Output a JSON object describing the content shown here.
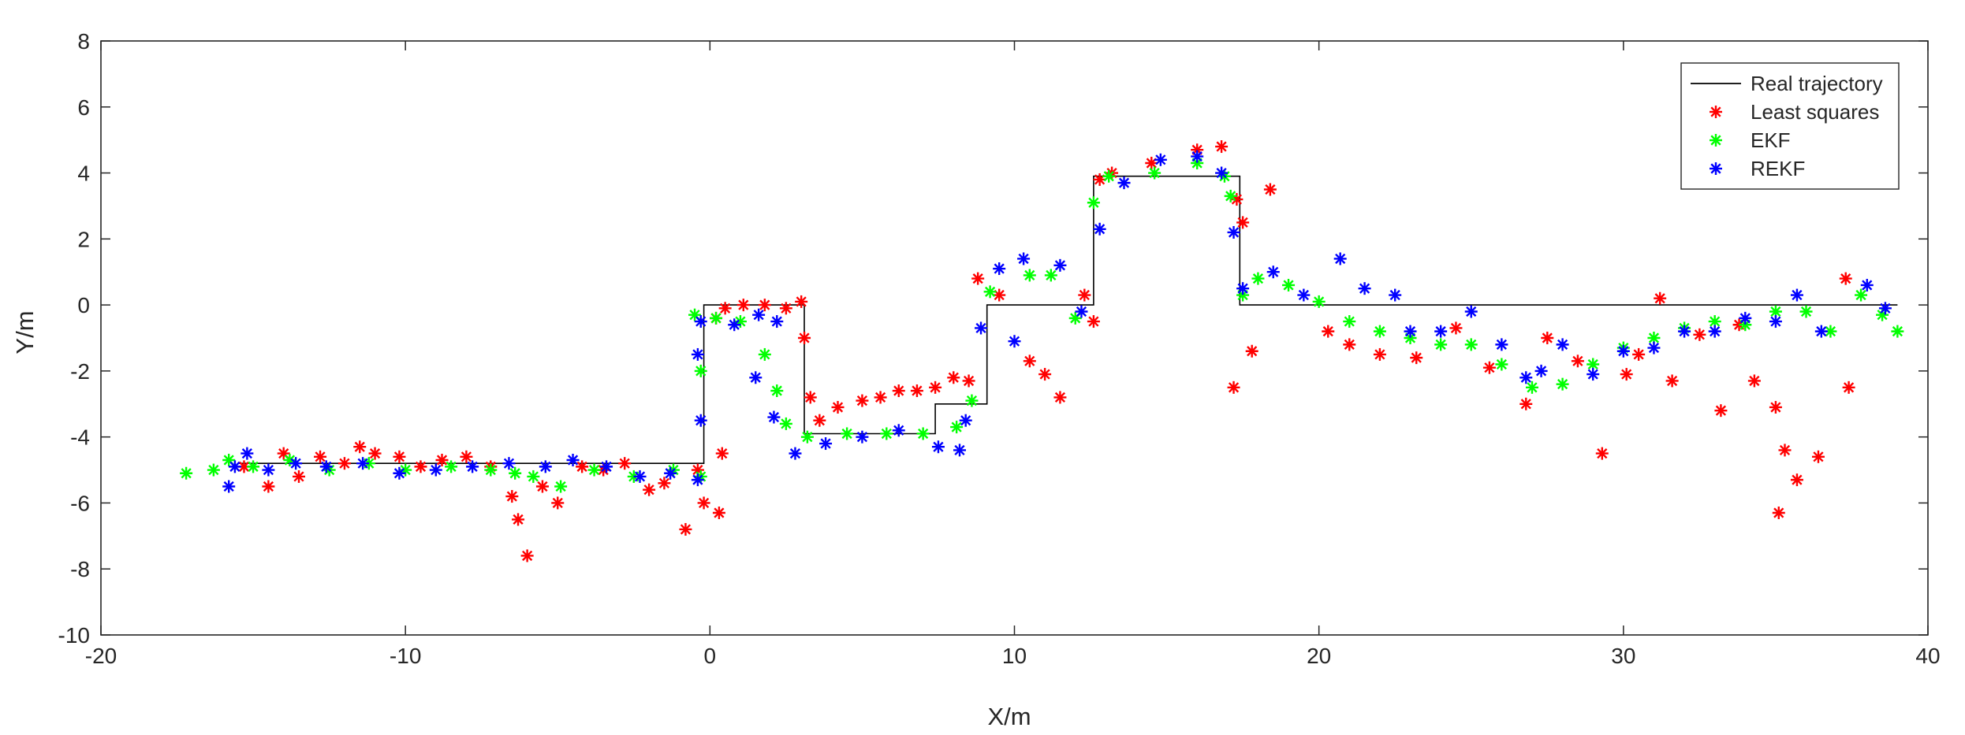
{
  "chart_data": {
    "type": "scatter",
    "xlabel": "X/m",
    "ylabel": "Y/m",
    "xlim": [
      -20,
      40
    ],
    "ylim": [
      -10,
      8
    ],
    "x_ticks": [
      -20,
      -10,
      0,
      10,
      20,
      30,
      40
    ],
    "y_ticks": [
      -10,
      -8,
      -6,
      -4,
      -2,
      0,
      2,
      4,
      6,
      8
    ],
    "grid": false,
    "legend_position": "top-right",
    "series": [
      {
        "name": "Real trajectory",
        "style": "line",
        "color": "#000000",
        "points": [
          [
            -15.5,
            -4.8
          ],
          [
            -0.2,
            -4.8
          ],
          [
            -0.2,
            0.0
          ],
          [
            3.1,
            0.0
          ],
          [
            3.1,
            -3.9
          ],
          [
            7.4,
            -3.9
          ],
          [
            7.4,
            -3.0
          ],
          [
            9.1,
            -3.0
          ],
          [
            9.1,
            0.0
          ],
          [
            12.6,
            0.0
          ],
          [
            12.6,
            3.9
          ],
          [
            17.4,
            3.9
          ],
          [
            17.4,
            0.0
          ],
          [
            39.0,
            0.0
          ]
        ]
      },
      {
        "name": "Least squares",
        "style": "marker",
        "color": "#ff0000",
        "points": [
          [
            -15.3,
            -4.9
          ],
          [
            -14.5,
            -5.5
          ],
          [
            -14,
            -4.5
          ],
          [
            -13.5,
            -5.2
          ],
          [
            -12.8,
            -4.6
          ],
          [
            -12,
            -4.8
          ],
          [
            -11.5,
            -4.3
          ],
          [
            -11,
            -4.5
          ],
          [
            -10.2,
            -4.6
          ],
          [
            -9.5,
            -4.9
          ],
          [
            -8.8,
            -4.7
          ],
          [
            -8,
            -4.6
          ],
          [
            -7.2,
            -4.9
          ],
          [
            -6.5,
            -5.8
          ],
          [
            -6.3,
            -6.5
          ],
          [
            -6.0,
            -7.6
          ],
          [
            -5.5,
            -5.5
          ],
          [
            -5,
            -6.0
          ],
          [
            -4.2,
            -4.9
          ],
          [
            -3.5,
            -5.0
          ],
          [
            -2.8,
            -4.8
          ],
          [
            -2,
            -5.6
          ],
          [
            -1.5,
            -5.4
          ],
          [
            -0.8,
            -6.8
          ],
          [
            -0.4,
            -5.0
          ],
          [
            -0.2,
            -6.0
          ],
          [
            0.3,
            -6.3
          ],
          [
            0.4,
            -4.5
          ],
          [
            0.2,
            -0.4
          ],
          [
            0.5,
            -0.1
          ],
          [
            1.1,
            0.0
          ],
          [
            1.8,
            0.0
          ],
          [
            2.5,
            -0.1
          ],
          [
            3.0,
            0.1
          ],
          [
            3.1,
            -1.0
          ],
          [
            3.3,
            -2.8
          ],
          [
            3.6,
            -3.5
          ],
          [
            4.2,
            -3.1
          ],
          [
            5.0,
            -2.9
          ],
          [
            5.6,
            -2.8
          ],
          [
            6.2,
            -2.6
          ],
          [
            6.8,
            -2.6
          ],
          [
            7.4,
            -2.5
          ],
          [
            8.0,
            -2.2
          ],
          [
            8.5,
            -2.3
          ],
          [
            8.8,
            0.8
          ],
          [
            9.5,
            0.3
          ],
          [
            10.5,
            -1.7
          ],
          [
            11,
            -2.1
          ],
          [
            11.5,
            -2.8
          ],
          [
            12.3,
            0.3
          ],
          [
            12.6,
            -0.5
          ],
          [
            12.8,
            3.8
          ],
          [
            13.2,
            4.0
          ],
          [
            14.5,
            4.3
          ],
          [
            16,
            4.7
          ],
          [
            16.8,
            4.8
          ],
          [
            17.3,
            3.2
          ],
          [
            17.5,
            2.5
          ],
          [
            17.2,
            -2.5
          ],
          [
            17.8,
            -1.4
          ],
          [
            18.4,
            3.5
          ],
          [
            20.3,
            -0.8
          ],
          [
            21,
            -1.2
          ],
          [
            22,
            -1.5
          ],
          [
            23.2,
            -1.6
          ],
          [
            24.5,
            -0.7
          ],
          [
            25.6,
            -1.9
          ],
          [
            26.8,
            -3.0
          ],
          [
            27.5,
            -1.0
          ],
          [
            28.5,
            -1.7
          ],
          [
            29.3,
            -4.5
          ],
          [
            30.1,
            -2.1
          ],
          [
            30.5,
            -1.5
          ],
          [
            31.2,
            0.2
          ],
          [
            31.6,
            -2.3
          ],
          [
            32.5,
            -0.9
          ],
          [
            33.2,
            -3.2
          ],
          [
            33.8,
            -0.6
          ],
          [
            34.3,
            -2.3
          ],
          [
            35.0,
            -3.1
          ],
          [
            35.1,
            -6.3
          ],
          [
            35.3,
            -4.4
          ],
          [
            35.7,
            -5.3
          ],
          [
            36.4,
            -4.6
          ],
          [
            37.4,
            -2.5
          ],
          [
            37.3,
            0.8
          ]
        ]
      },
      {
        "name": "EKF",
        "style": "marker",
        "color": "#00ff00",
        "points": [
          [
            -17.2,
            -5.1
          ],
          [
            -16.3,
            -5.0
          ],
          [
            -15.8,
            -4.7
          ],
          [
            -15.0,
            -4.9
          ],
          [
            -13.8,
            -4.7
          ],
          [
            -12.5,
            -5.0
          ],
          [
            -11.2,
            -4.8
          ],
          [
            -10,
            -5.0
          ],
          [
            -8.5,
            -4.9
          ],
          [
            -7.2,
            -5.0
          ],
          [
            -6.4,
            -5.1
          ],
          [
            -5.8,
            -5.2
          ],
          [
            -4.9,
            -5.5
          ],
          [
            -3.8,
            -5.0
          ],
          [
            -2.5,
            -5.2
          ],
          [
            -1.2,
            -5.0
          ],
          [
            -0.3,
            -5.2
          ],
          [
            -0.5,
            -0.3
          ],
          [
            -0.3,
            -2.0
          ],
          [
            0.2,
            -0.4
          ],
          [
            1.0,
            -0.5
          ],
          [
            1.8,
            -1.5
          ],
          [
            2.2,
            -2.6
          ],
          [
            2.5,
            -3.6
          ],
          [
            3.2,
            -4.0
          ],
          [
            4.5,
            -3.9
          ],
          [
            5.8,
            -3.9
          ],
          [
            7.0,
            -3.9
          ],
          [
            8.1,
            -3.7
          ],
          [
            8.6,
            -2.9
          ],
          [
            9.2,
            0.4
          ],
          [
            10.5,
            0.9
          ],
          [
            11.2,
            0.9
          ],
          [
            12.0,
            -0.4
          ],
          [
            12.6,
            3.1
          ],
          [
            13.1,
            3.9
          ],
          [
            14.6,
            4.0
          ],
          [
            16.0,
            4.3
          ],
          [
            16.9,
            3.9
          ],
          [
            17.1,
            3.3
          ],
          [
            17.5,
            0.3
          ],
          [
            18.0,
            0.8
          ],
          [
            19.0,
            0.6
          ],
          [
            20.0,
            0.1
          ],
          [
            21.0,
            -0.5
          ],
          [
            22.0,
            -0.8
          ],
          [
            23.0,
            -1.0
          ],
          [
            24.0,
            -1.2
          ],
          [
            25.0,
            -1.2
          ],
          [
            26.0,
            -1.8
          ],
          [
            27.0,
            -2.5
          ],
          [
            28.0,
            -2.4
          ],
          [
            29.0,
            -1.8
          ],
          [
            30.0,
            -1.3
          ],
          [
            31.0,
            -1.0
          ],
          [
            32.0,
            -0.7
          ],
          [
            33.0,
            -0.5
          ],
          [
            34.0,
            -0.6
          ],
          [
            35.0,
            -0.2
          ],
          [
            36.0,
            -0.2
          ],
          [
            36.8,
            -0.8
          ],
          [
            37.8,
            0.3
          ],
          [
            38.5,
            -0.3
          ],
          [
            39.0,
            -0.8
          ]
        ]
      },
      {
        "name": "REKF",
        "style": "marker",
        "color": "#0000ff",
        "points": [
          [
            -15.8,
            -5.5
          ],
          [
            -15.6,
            -4.9
          ],
          [
            -15.2,
            -4.5
          ],
          [
            -14.5,
            -5.0
          ],
          [
            -13.6,
            -4.8
          ],
          [
            -12.6,
            -4.9
          ],
          [
            -11.4,
            -4.8
          ],
          [
            -10.2,
            -5.1
          ],
          [
            -9.0,
            -5.0
          ],
          [
            -7.8,
            -4.9
          ],
          [
            -6.6,
            -4.8
          ],
          [
            -5.4,
            -4.9
          ],
          [
            -4.5,
            -4.7
          ],
          [
            -3.4,
            -4.9
          ],
          [
            -2.3,
            -5.2
          ],
          [
            -1.3,
            -5.1
          ],
          [
            -0.4,
            -5.3
          ],
          [
            -0.3,
            -3.5
          ],
          [
            -0.4,
            -1.5
          ],
          [
            -0.3,
            -0.5
          ],
          [
            0.8,
            -0.6
          ],
          [
            1.6,
            -0.3
          ],
          [
            2.2,
            -0.5
          ],
          [
            1.5,
            -2.2
          ],
          [
            2.1,
            -3.4
          ],
          [
            2.8,
            -4.5
          ],
          [
            3.8,
            -4.2
          ],
          [
            5.0,
            -4.0
          ],
          [
            6.2,
            -3.8
          ],
          [
            7.5,
            -4.3
          ],
          [
            8.2,
            -4.4
          ],
          [
            8.4,
            -3.5
          ],
          [
            8.9,
            -0.7
          ],
          [
            9.5,
            1.1
          ],
          [
            10.3,
            1.4
          ],
          [
            10.0,
            -1.1
          ],
          [
            11.5,
            1.2
          ],
          [
            12.2,
            -0.2
          ],
          [
            12.8,
            2.3
          ],
          [
            13.6,
            3.7
          ],
          [
            14.8,
            4.4
          ],
          [
            16.0,
            4.5
          ],
          [
            16.8,
            4.0
          ],
          [
            17.2,
            2.2
          ],
          [
            17.5,
            0.5
          ],
          [
            18.5,
            1.0
          ],
          [
            19.5,
            0.3
          ],
          [
            20.7,
            1.4
          ],
          [
            21.5,
            0.5
          ],
          [
            22.5,
            0.3
          ],
          [
            23.0,
            -0.8
          ],
          [
            24.0,
            -0.8
          ],
          [
            25.0,
            -0.2
          ],
          [
            26.0,
            -1.2
          ],
          [
            26.8,
            -2.2
          ],
          [
            27.3,
            -2.0
          ],
          [
            28.0,
            -1.2
          ],
          [
            29.0,
            -2.1
          ],
          [
            30.0,
            -1.4
          ],
          [
            31.0,
            -1.3
          ],
          [
            32.0,
            -0.8
          ],
          [
            33.0,
            -0.8
          ],
          [
            34.0,
            -0.4
          ],
          [
            35.0,
            -0.5
          ],
          [
            35.7,
            0.3
          ],
          [
            36.5,
            -0.8
          ],
          [
            38.0,
            0.6
          ],
          [
            38.6,
            -0.1
          ]
        ]
      }
    ]
  }
}
